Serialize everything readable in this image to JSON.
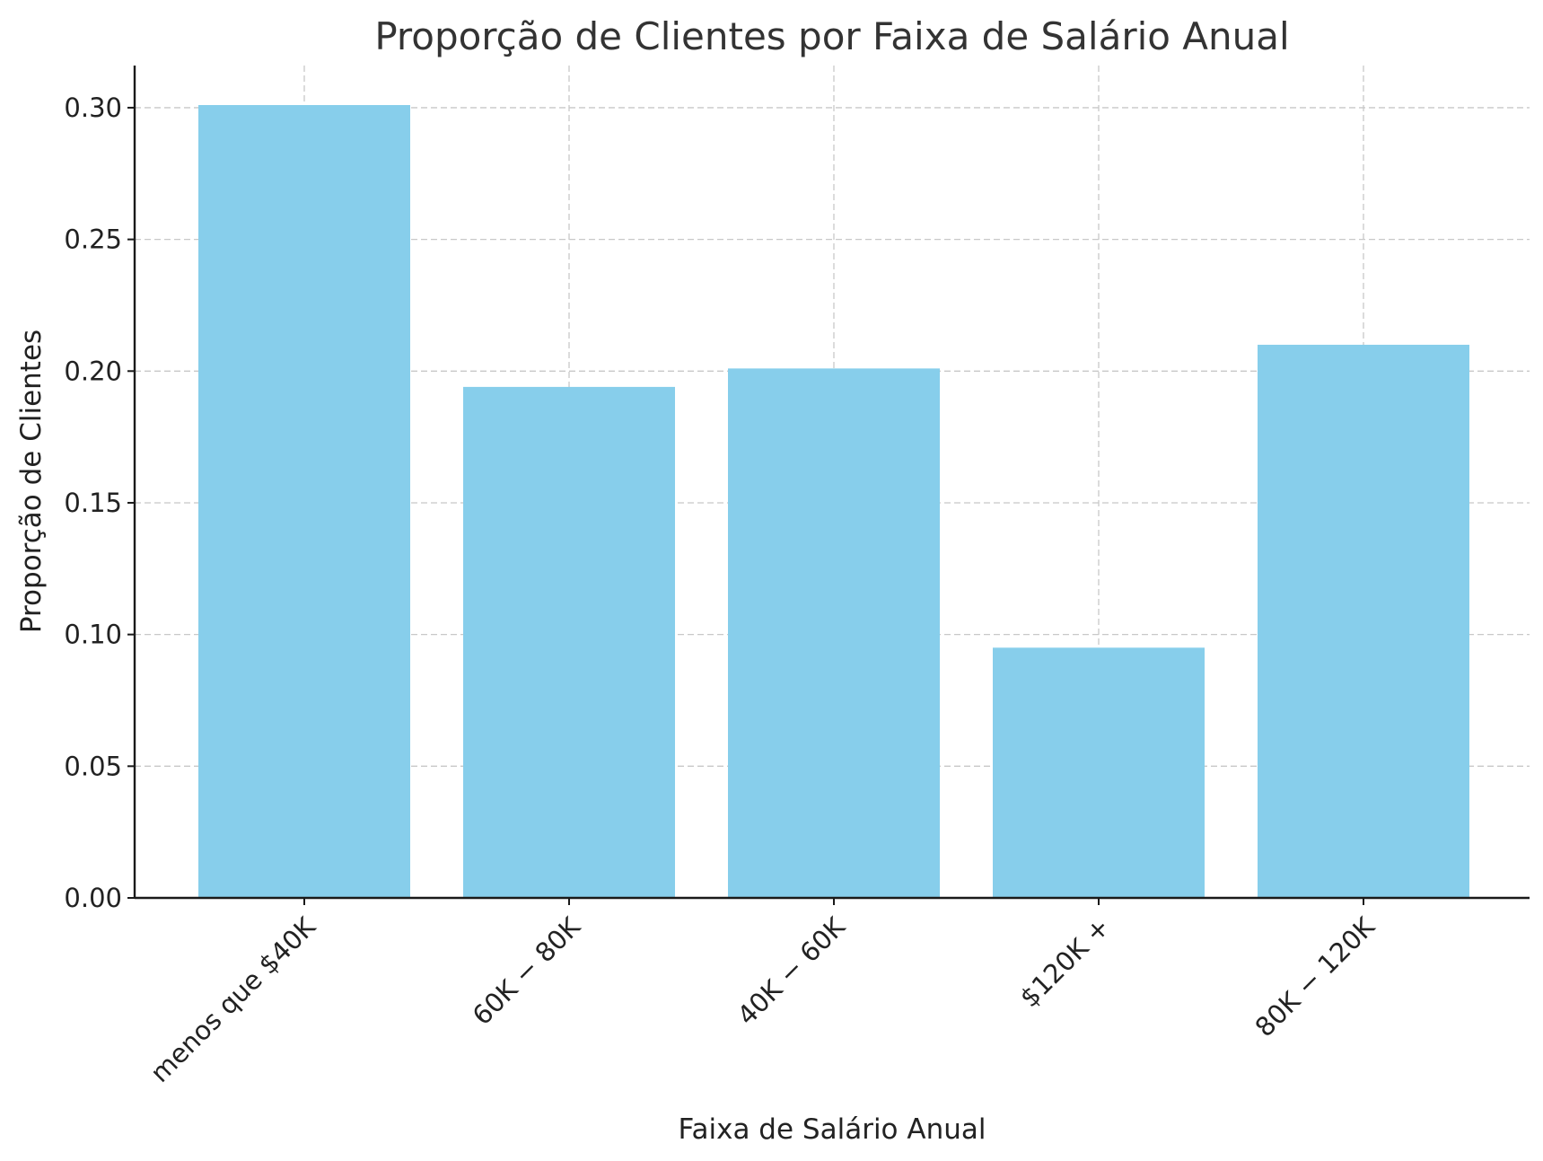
{
  "chart_data": {
    "type": "bar",
    "title": "Proporção de Clientes por Faixa de Salário Anual",
    "xlabel": "Faixa de Salário Anual",
    "ylabel": "Proporção de Clientes",
    "categories": [
      "menos que $40K",
      "60K − 80K",
      "40K − 60K",
      "$120K +",
      "80K − 120K"
    ],
    "values": [
      0.301,
      0.194,
      0.201,
      0.095,
      0.21
    ],
    "ylim": [
      0,
      0.316
    ],
    "yticks": [
      0.0,
      0.05,
      0.1,
      0.15,
      0.2,
      0.25,
      0.3
    ],
    "ytick_labels": [
      "0.00",
      "0.05",
      "0.10",
      "0.15",
      "0.20",
      "0.25",
      "0.30"
    ],
    "bar_color": "#87ceeb",
    "grid": true,
    "xtick_rotation": "45 degrees"
  }
}
